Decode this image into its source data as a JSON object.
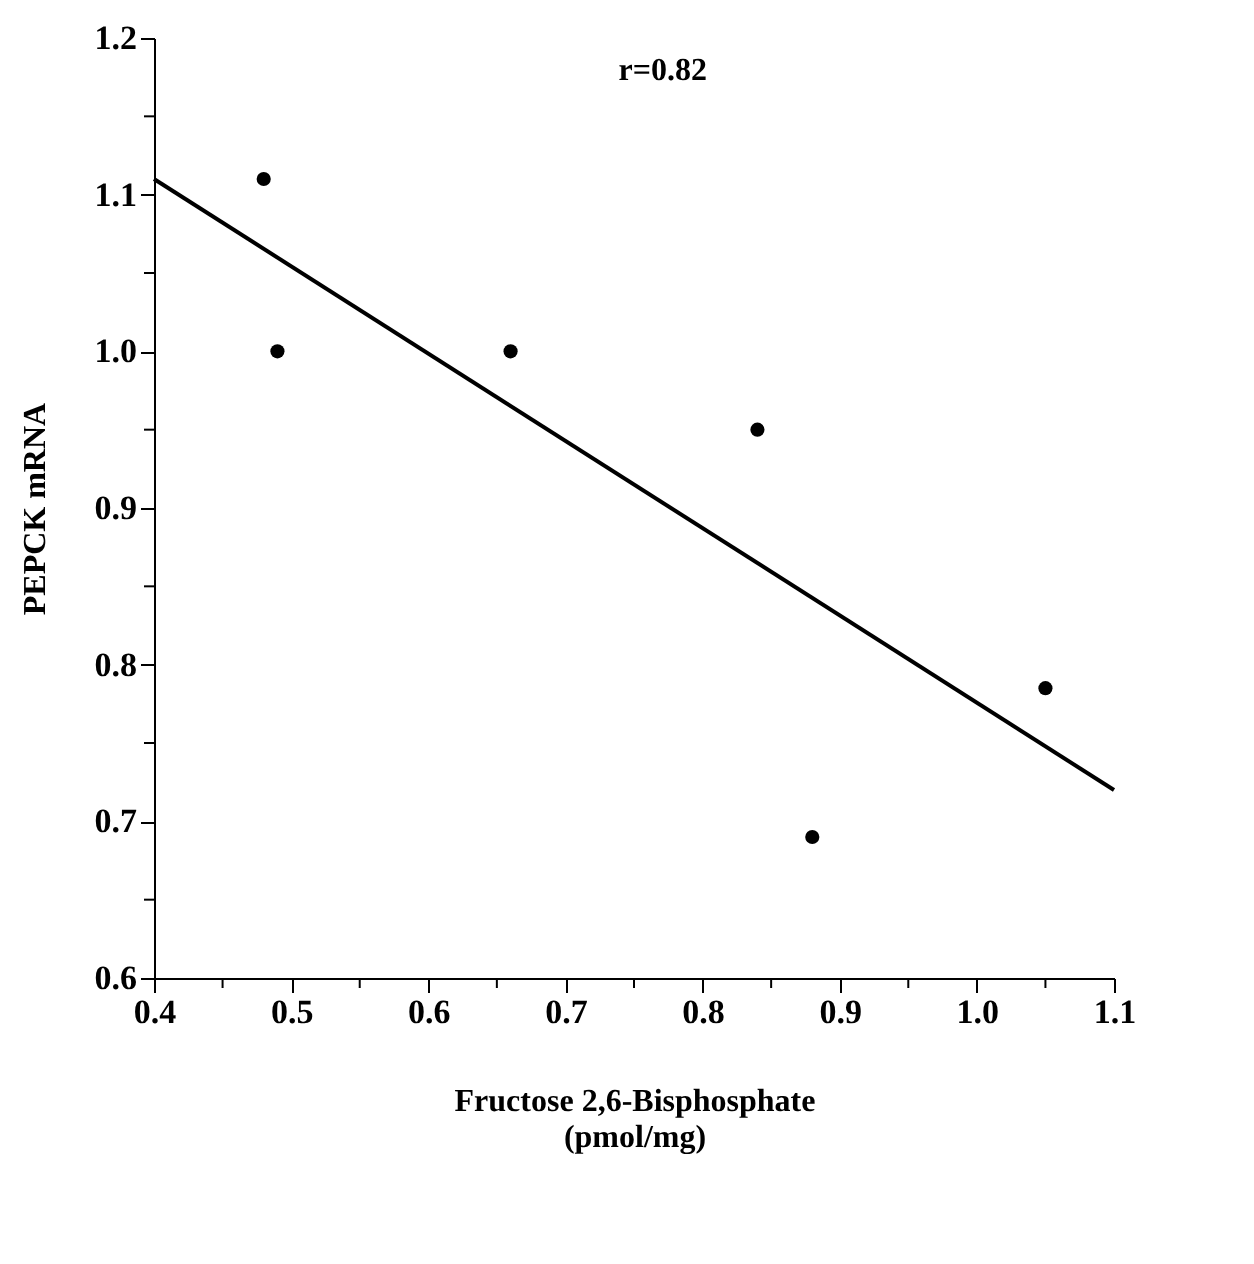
{
  "chart_data": {
    "type": "scatter",
    "xlabel": "Fructose 2,6-Bisphosphate\n(pmol/mg)",
    "ylabel": "PEPCK mRNA",
    "annotations": [
      "r=0.82"
    ],
    "series": [
      {
        "color": "#000000",
        "marker": "circle",
        "x": [
          0.48,
          0.49,
          0.66,
          0.84,
          0.88,
          1.05
        ],
        "values": [
          1.11,
          1.0,
          1.0,
          0.95,
          0.69,
          0.785
        ]
      },
      {
        "type": "line",
        "color": "#000000",
        "marker": "none",
        "line_style": "solid",
        "x": [
          0.4,
          1.1
        ],
        "values": [
          1.11,
          0.72
        ]
      }
    ],
    "grid": false,
    "xlim": [
      0.4,
      1.1
    ],
    "ylim": [
      0.6,
      1.2
    ],
    "xticks": [
      0.4,
      {
        "value": 0.45,
        "label": null
      },
      0.5,
      {
        "value": 0.55,
        "label": null
      },
      0.6,
      {
        "value": 0.65,
        "label": null
      },
      0.7,
      {
        "value": 0.75,
        "label": null
      },
      0.8,
      {
        "value": 0.85,
        "label": null
      },
      0.9,
      {
        "value": 0.95,
        "label": null
      },
      {
        "value": 1.0,
        "label": "1.0"
      },
      {
        "value": 1.05,
        "label": null
      },
      1.1
    ],
    "yticks": [
      0.6,
      {
        "value": 0.65,
        "label": null
      },
      0.7,
      {
        "value": 0.75,
        "label": null
      },
      0.8,
      {
        "value": 0.85,
        "label": null
      },
      0.9,
      {
        "value": 0.95,
        "label": null
      },
      {
        "value": 1.0,
        "label": "1.0"
      },
      {
        "value": 1.05,
        "label": null
      },
      1.1,
      {
        "value": 1.15,
        "label": null
      },
      1.2
    ]
  }
}
